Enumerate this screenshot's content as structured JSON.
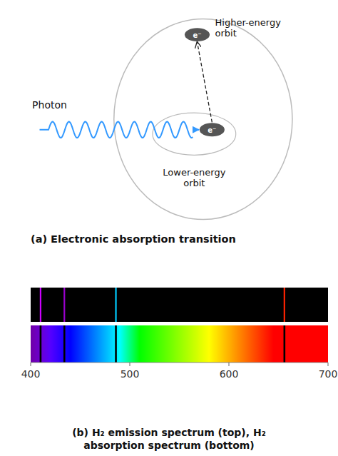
{
  "chart_data": {
    "type": "spectrum",
    "title": "(a) Electronic absorption transition",
    "subtitle": "(b) H₂ emission spectrum (top), H₂\nabsorption spectrum (bottom)",
    "annotations": [
      "Photon",
      "Higher-energy\norbit",
      "Lower-energy\norbit",
      "e⁻"
    ],
    "xlim": [
      400,
      700
    ],
    "xticks": [
      400,
      500,
      600,
      700
    ],
    "series": [
      {
        "values": [
          410,
          434,
          486,
          656
        ],
        "colors": [
          "#CC00FF",
          "#9900CC",
          "#00CCFF",
          "#FF2200"
        ]
      },
      {
        "values": [
          410,
          434,
          486,
          656
        ],
        "colors": [
          "#000000",
          "#000000",
          "#000000",
          "#000000"
        ]
      }
    ]
  }
}
